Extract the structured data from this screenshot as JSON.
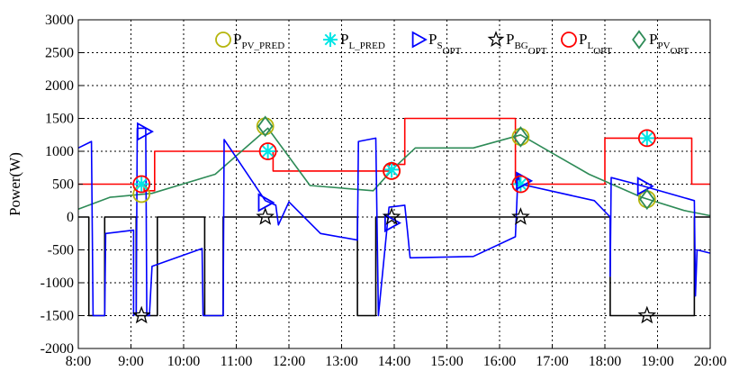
{
  "chart_data": {
    "type": "line",
    "title": "",
    "xlabel": "",
    "ylabel": "Power(W)",
    "xlim": [
      "8:00",
      "20:00"
    ],
    "ylim": [
      -2000,
      3000
    ],
    "x_ticks": [
      "8:00",
      "9:00",
      "10:00",
      "11:00",
      "12:00",
      "13:00",
      "14:00",
      "15:00",
      "16:00",
      "17:00",
      "18:00",
      "19:00",
      "20:00"
    ],
    "y_ticks": [
      "-2000",
      "-1500",
      "-1000",
      "-500",
      "0",
      "500",
      "1000",
      "1500",
      "2000",
      "2500",
      "3000"
    ],
    "grid": true,
    "legend_position": "top-right",
    "series": [
      {
        "key": "PBG",
        "color": "#000000",
        "x": [
          8.0,
          8.2,
          8.2,
          8.5,
          8.5,
          9.1,
          9.1,
          9.5,
          9.5,
          10.4,
          10.4,
          10.75,
          10.75,
          13.3,
          13.3,
          13.65,
          13.65,
          18.1,
          18.1,
          19.7,
          19.7,
          20.0
        ],
        "y": [
          0,
          0,
          -1500,
          -1500,
          0,
          0,
          -1500,
          -1500,
          0,
          0,
          -1500,
          -1500,
          0,
          0,
          -1500,
          -1500,
          0,
          0,
          -1500,
          -1500,
          0,
          0
        ]
      },
      {
        "key": "PL",
        "color": "#ff0000",
        "x": [
          8.0,
          9.25,
          9.25,
          9.45,
          9.45,
          11.7,
          11.7,
          13.9,
          13.9,
          14.2,
          14.2,
          16.3,
          16.3,
          18.0,
          18.0,
          19.65,
          19.65,
          20.0
        ],
        "y": [
          500,
          500,
          400,
          400,
          1000,
          1000,
          700,
          700,
          800,
          800,
          1500,
          1500,
          500,
          500,
          1200,
          1200,
          500,
          500
        ]
      },
      {
        "key": "PPV",
        "color": "#2e8b57",
        "x": [
          8.0,
          8.6,
          9.4,
          10.6,
          11.6,
          12.4,
          13.6,
          14.0,
          14.4,
          15.5,
          16.4,
          17.7,
          18.7,
          19.5,
          20.0
        ],
        "y": [
          120,
          300,
          360,
          650,
          1350,
          480,
          400,
          750,
          1050,
          1050,
          1250,
          650,
          300,
          100,
          20
        ]
      },
      {
        "key": "PS",
        "color": "#0000ff",
        "x": [
          8.0,
          8.25,
          8.28,
          8.5,
          8.52,
          9.05,
          9.05,
          9.1,
          9.12,
          9.28,
          9.3,
          9.35,
          9.4,
          10.35,
          10.37,
          10.75,
          10.77,
          11.55,
          11.75,
          11.8,
          12.0,
          12.6,
          13.3,
          13.32,
          13.65,
          13.7,
          13.9,
          14.2,
          14.25,
          14.3,
          15.5,
          16.3,
          16.35,
          16.4,
          17.8,
          18.1,
          18.1,
          18.12,
          18.6,
          19.7,
          19.72,
          19.75,
          20.0
        ],
        "y": [
          1050,
          1150,
          -1500,
          -1500,
          -250,
          -200,
          -1500,
          -1450,
          1350,
          1350,
          -1500,
          -1500,
          -750,
          -480,
          -1500,
          -1500,
          1180,
          250,
          180,
          -120,
          230,
          -250,
          -350,
          1150,
          1200,
          -1500,
          150,
          180,
          -200,
          -620,
          -600,
          -300,
          650,
          500,
          250,
          0,
          -900,
          600,
          500,
          250,
          -1200,
          -500,
          -550
        ]
      }
    ],
    "markers": [
      {
        "series": "PPV_PRED",
        "shape": "circle-open",
        "color": "#b5b50c",
        "points": [
          [
            9.2,
            350
          ],
          [
            11.55,
            1380
          ],
          [
            13.95,
            700
          ],
          [
            16.4,
            1220
          ],
          [
            18.8,
            270
          ]
        ]
      },
      {
        "series": "PL_PRED",
        "shape": "asterisk",
        "color": "#00e5e5",
        "points": [
          [
            9.2,
            500
          ],
          [
            11.6,
            1000
          ],
          [
            13.95,
            720
          ],
          [
            16.4,
            500
          ],
          [
            18.8,
            1200
          ]
        ]
      },
      {
        "series": "PS_OPT",
        "shape": "triangle-right-open",
        "color": "#0000ff",
        "points": [
          [
            9.25,
            1300
          ],
          [
            11.55,
            220
          ],
          [
            13.95,
            -90
          ],
          [
            16.45,
            550
          ],
          [
            18.75,
            470
          ]
        ]
      },
      {
        "series": "PBG_OPT",
        "shape": "star-open",
        "color": "#000000",
        "points": [
          [
            9.2,
            -1500
          ],
          [
            11.55,
            0
          ],
          [
            13.95,
            0
          ],
          [
            16.4,
            0
          ],
          [
            18.8,
            -1500
          ]
        ]
      },
      {
        "series": "PL_OPT",
        "shape": "circle-open",
        "color": "#ff0000",
        "points": [
          [
            9.2,
            500
          ],
          [
            11.6,
            1000
          ],
          [
            13.95,
            700
          ],
          [
            16.4,
            500
          ],
          [
            18.8,
            1200
          ]
        ]
      },
      {
        "series": "PPV_OPT",
        "shape": "diamond-open",
        "color": "#2e8b57",
        "points": [
          [
            11.55,
            1380
          ],
          [
            16.4,
            1220
          ],
          [
            18.8,
            270
          ]
        ]
      }
    ],
    "legend": [
      {
        "marker": "circle-open",
        "color": "#b5b50c",
        "main": "P",
        "sub": "PV_PRED",
        "subsub": ""
      },
      {
        "marker": "asterisk",
        "color": "#00e5e5",
        "main": "P",
        "sub": "L_PRED",
        "subsub": ""
      },
      {
        "marker": "triangle-right-open",
        "color": "#0000ff",
        "main": "P",
        "sub": "S",
        "subsub": "OPT"
      },
      {
        "marker": "star-open",
        "color": "#000000",
        "main": "P",
        "sub": "BG",
        "subsub": "OPT"
      },
      {
        "marker": "circle-open",
        "color": "#ff0000",
        "main": "P",
        "sub": "L",
        "subsub": "OPT"
      },
      {
        "marker": "diamond-open",
        "color": "#2e8b57",
        "main": "P",
        "sub": "PV",
        "subsub": "OPT"
      }
    ]
  }
}
